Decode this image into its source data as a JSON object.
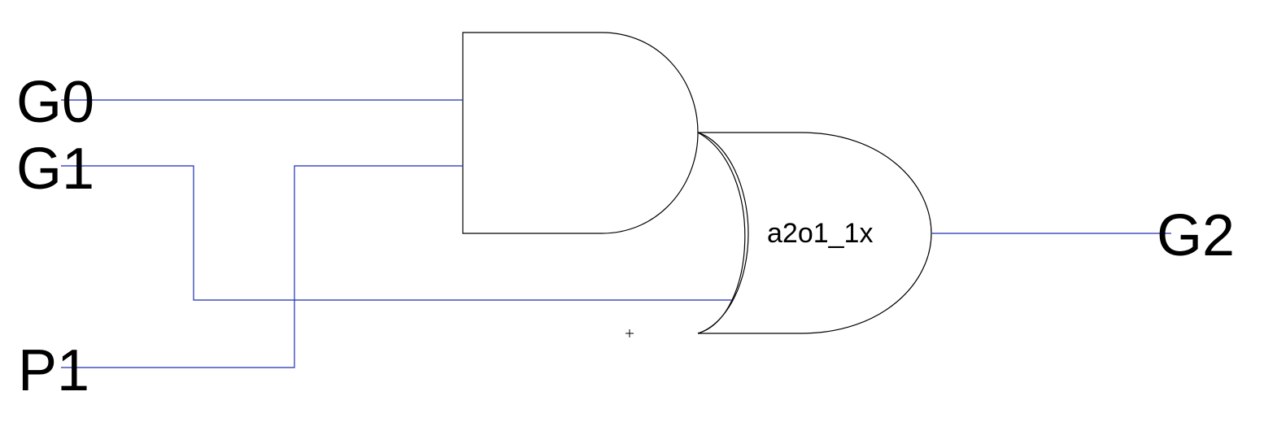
{
  "schematic": {
    "inputs": [
      "G0",
      "G1",
      "P1"
    ],
    "output": "G2",
    "cell_name": "a2o1_1x",
    "colors": {
      "wire": "#1f2fb4",
      "gate_outline": "#000000",
      "background": "#ffffff"
    }
  }
}
